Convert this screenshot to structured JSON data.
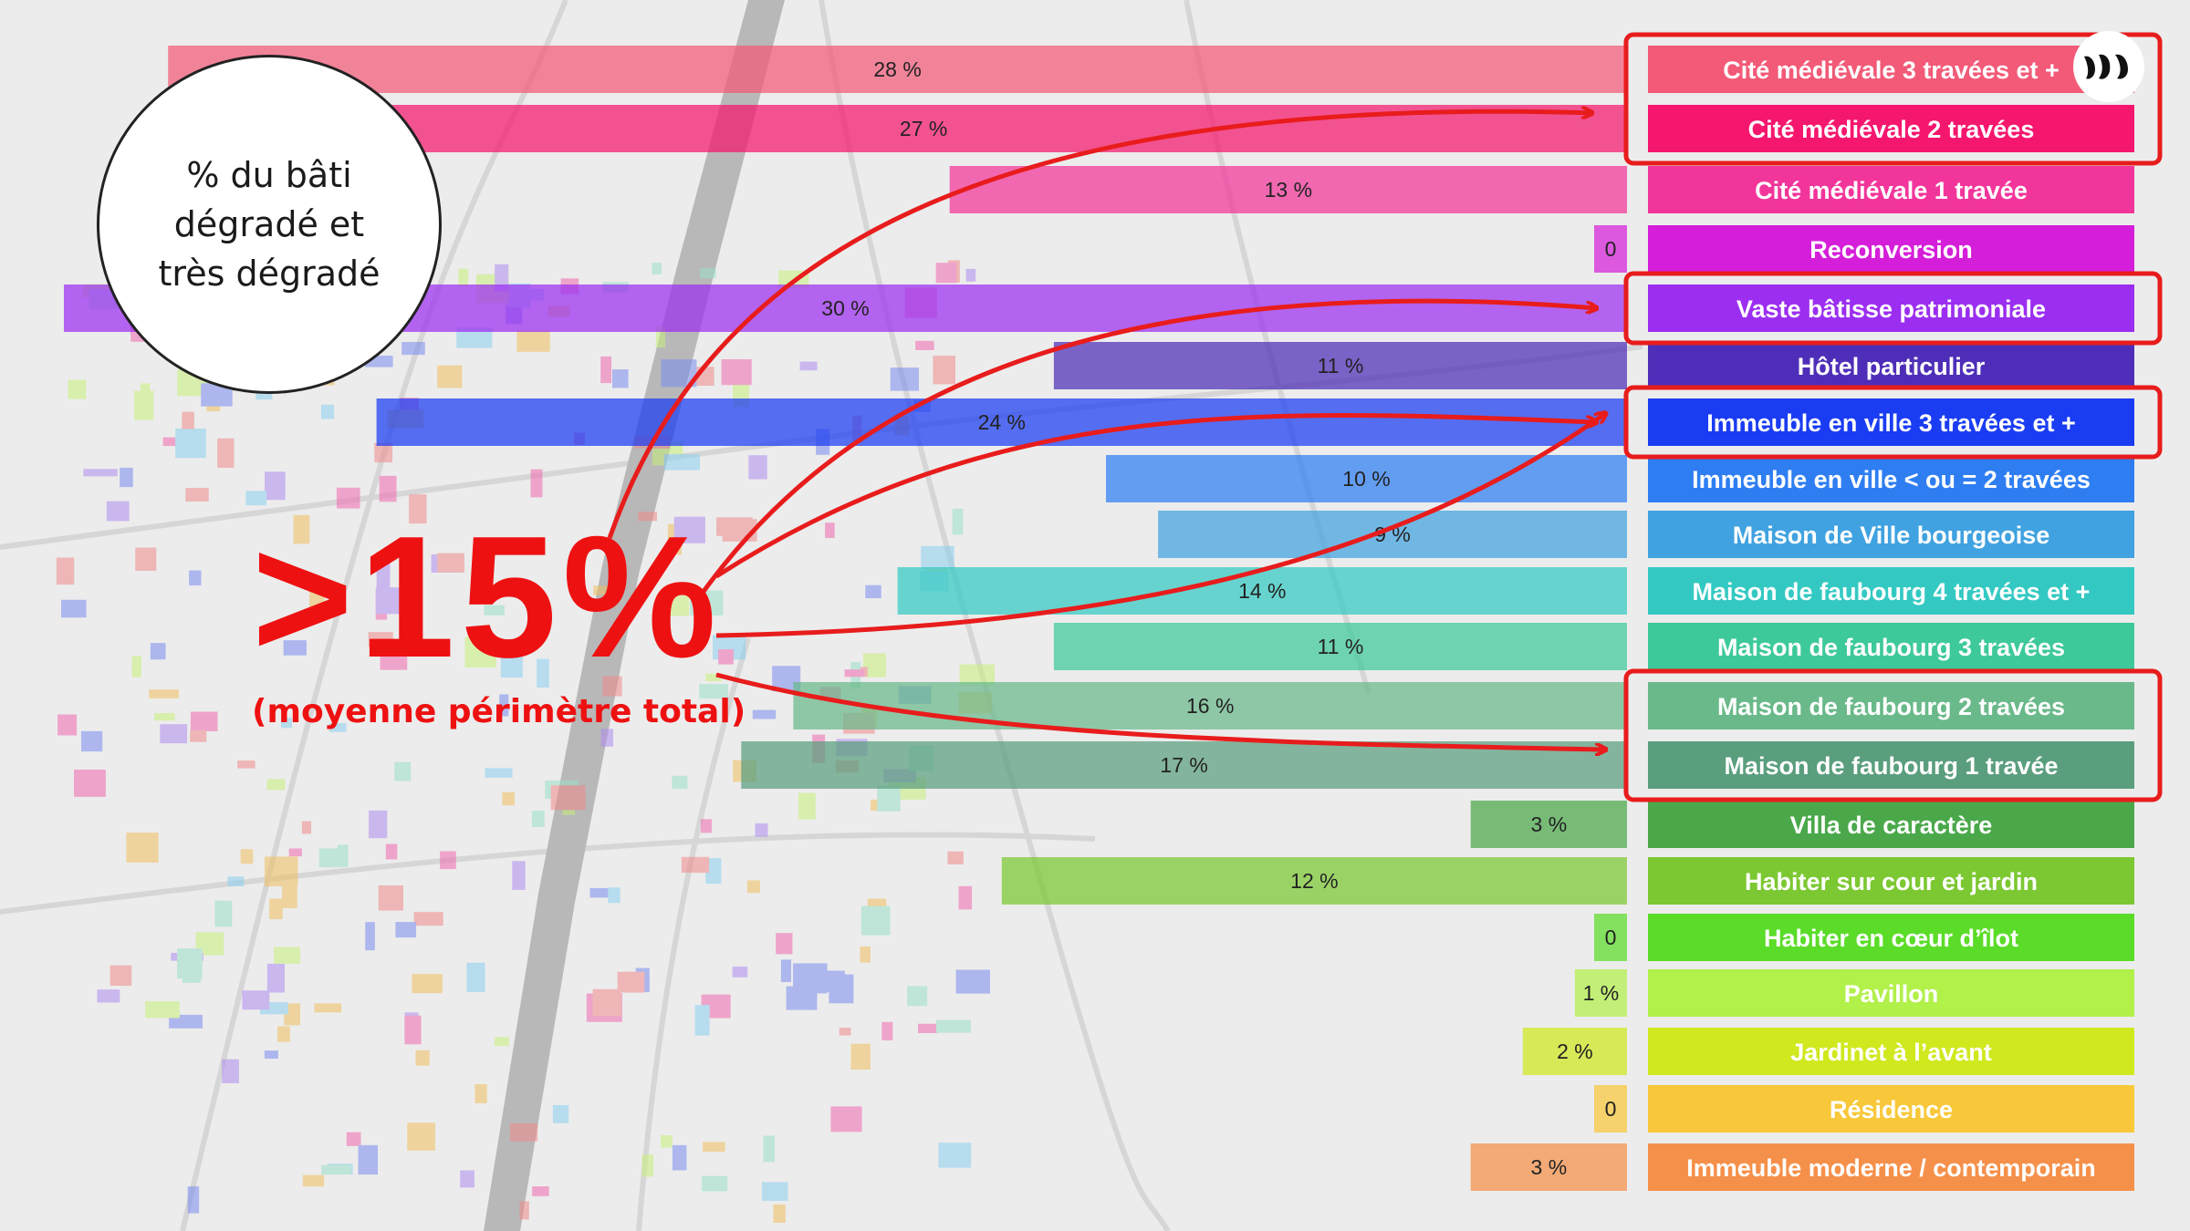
{
  "chart_data": {
    "type": "bar",
    "orientation": "horizontal-reversed",
    "title": "% du bâti\ndégradé et\ntrès dégradé",
    "categories": [
      "Cité médiévale 3 travées et +",
      "Cité médiévale 2 travées",
      "Cité médiévale 1 travée",
      "Reconversion",
      "Vaste bâtisse patrimoniale",
      "Hôtel particulier",
      "Immeuble en ville 3 travées et +",
      "Immeuble en ville < ou = 2 travées",
      "Maison de Ville bourgeoise",
      "Maison de faubourg 4 travées et +",
      "Maison de faubourg 3 travées",
      "Maison de faubourg 2 travées",
      "Maison de faubourg 1 travée",
      "Villa de caractère",
      "Habiter sur cour et jardin",
      "Habiter en cœur d’îlot",
      "Pavillon",
      "Jardinet à l’avant",
      "Résidence",
      "Immeuble  moderne / contemporain"
    ],
    "values": [
      28,
      27,
      13,
      0,
      30,
      11,
      24,
      10,
      9,
      14,
      11,
      16,
      17,
      3,
      12,
      0,
      1,
      2,
      0,
      3
    ],
    "value_labels": [
      "28 %",
      "27 %",
      "13 %",
      "0",
      "30 %",
      "11 %",
      "24 %",
      "10 %",
      "9 %",
      "14 %",
      "11 %",
      "16 %",
      "17 %",
      "3 %",
      "12 %",
      "0",
      "1 %",
      "2 %",
      "0",
      "3 %"
    ],
    "colors": [
      "#f25a78",
      "#f5166e",
      "#f2359a",
      "#d51ed9",
      "#9b2ef0",
      "#4e2eb8",
      "#1a3cf2",
      "#2e7ef2",
      "#40a2e0",
      "#33c9c2",
      "#3dc99a",
      "#6ab98a",
      "#5a9e7e",
      "#4aa84a",
      "#7cc832",
      "#5adc28",
      "#b2f04a",
      "#d0e81e",
      "#f8c83a",
      "#f5904a"
    ],
    "highlighted": [
      "Cité médiévale 3 travées et +",
      "Cité médiévale 2 travées",
      "Vaste bâtisse patrimoniale",
      "Immeuble en ville 3 travées et +",
      "Maison de faubourg 2 travées",
      "Maison de faubourg 1 travée"
    ],
    "xlim": [
      0,
      30
    ],
    "legend": "none",
    "grid": false
  },
  "annotation": {
    "big_value": ">15%",
    "subtitle": "(moyenne périmètre total)"
  },
  "colors": {
    "highlight": "#e81c1c",
    "label_text": "#ffffff"
  },
  "logo": {
    "icon": "brand-logo-icon"
  }
}
